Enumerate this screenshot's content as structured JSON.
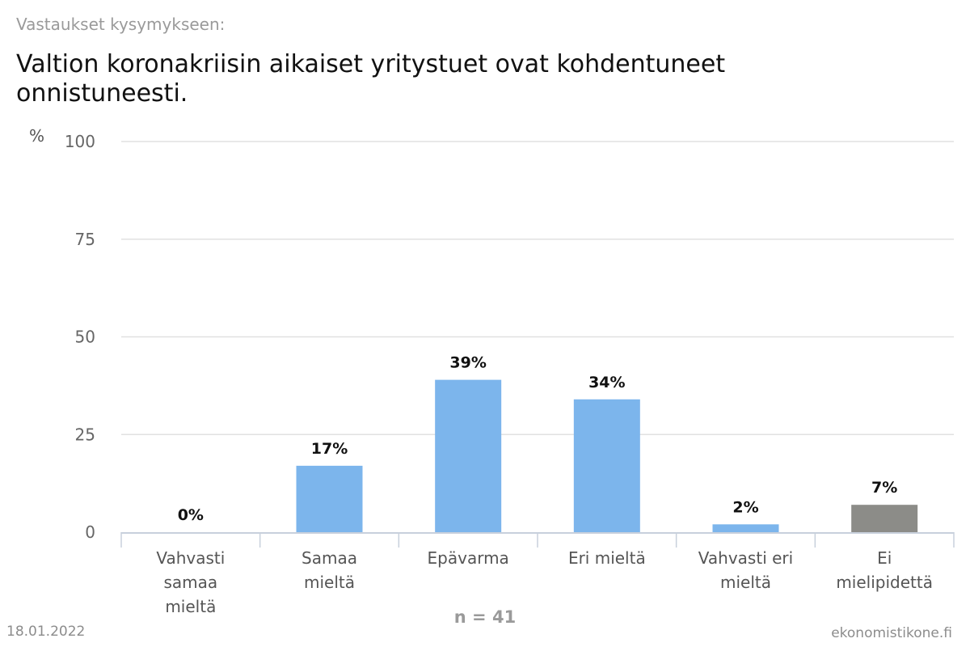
{
  "header": {
    "subtitle": "Vastaukset kysymykseen:",
    "title": "Valtion koronakriisin aikaiset yritystuet ovat kohdentuneet onnistuneesti."
  },
  "footer": {
    "date": "18.01.2022",
    "site": "ekonomistikone.fi"
  },
  "chart_data": {
    "type": "bar",
    "ylabel": "%",
    "ylim": [
      0,
      100
    ],
    "yticks": [
      0,
      25,
      50,
      75,
      100
    ],
    "grid": true,
    "categories": [
      [
        "Vahvasti",
        "samaa",
        "mieltä"
      ],
      [
        "Samaa",
        "mieltä"
      ],
      [
        "Epävarma"
      ],
      [
        "Eri mieltä"
      ],
      [
        "Vahvasti eri",
        "mieltä"
      ],
      [
        "Ei",
        "mielipidettä"
      ]
    ],
    "values": [
      0,
      17,
      39,
      34,
      2,
      7
    ],
    "value_labels": [
      "0%",
      "17%",
      "39%",
      "34%",
      "2%",
      "7%"
    ],
    "colors": [
      "#7cb5ec",
      "#7cb5ec",
      "#7cb5ec",
      "#7cb5ec",
      "#7cb5ec",
      "#8c8c88"
    ],
    "n_label": "n = 41"
  }
}
